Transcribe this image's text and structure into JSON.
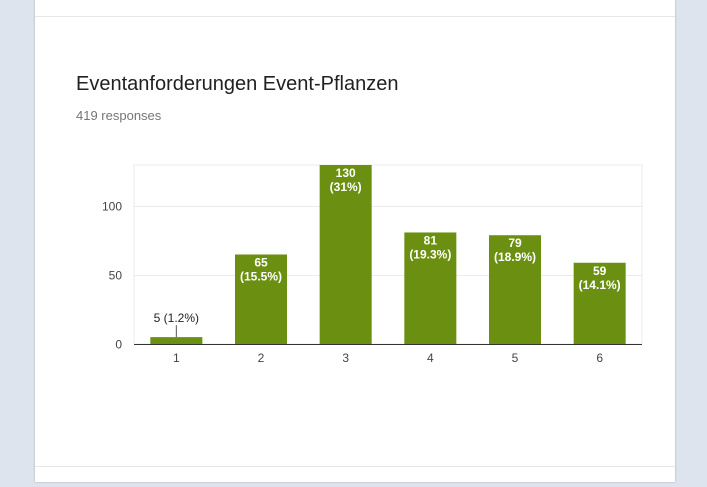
{
  "question": {
    "title": "Eventanforderungen Event-Pflanzen",
    "responses": "419 responses"
  },
  "colors": {
    "bar": "#6b8f10",
    "grid": "#ebebeb",
    "axis": "#333333",
    "tick_text": "#444444"
  },
  "chart_data": {
    "type": "bar",
    "title": "Eventanforderungen Event-Pflanzen",
    "xlabel": "",
    "ylabel": "",
    "categories": [
      "1",
      "2",
      "3",
      "4",
      "5",
      "6"
    ],
    "values": [
      5,
      65,
      130,
      81,
      79,
      59
    ],
    "data_labels": [
      [
        "5 (1.2%)"
      ],
      [
        "65",
        "(15.5%)"
      ],
      [
        "130",
        "(31%)"
      ],
      [
        "81",
        "(19.3%)"
      ],
      [
        "79",
        "(18.9%)"
      ],
      [
        "59",
        "(14.1%)"
      ]
    ],
    "ylim": [
      0,
      130
    ],
    "yticks": [
      0,
      50,
      100
    ],
    "grid": true,
    "legend": "none"
  }
}
